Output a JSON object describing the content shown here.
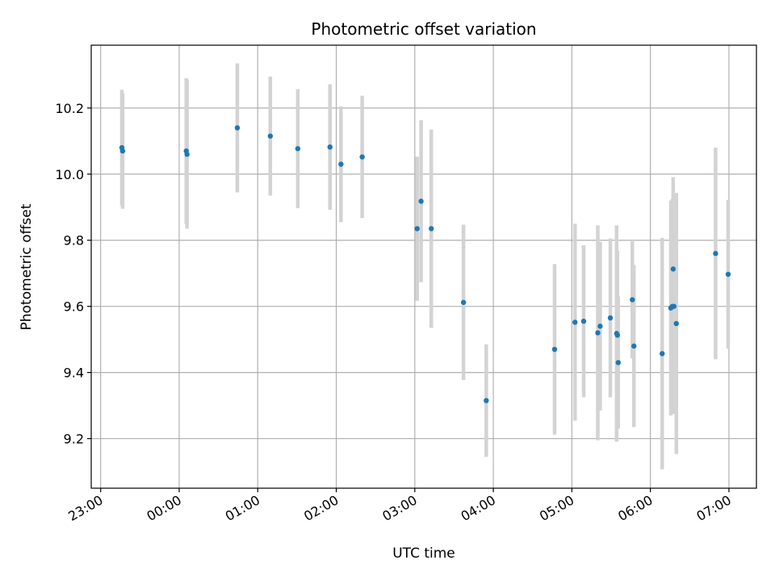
{
  "chart_data": {
    "type": "scatter",
    "title": "Photometric offset variation",
    "xlabel": "UTC time",
    "ylabel": "Photometric offset",
    "x_unit": "hours, UTC",
    "xlim": [
      -1.12,
      7.35
    ],
    "ylim": [
      9.05,
      10.39
    ],
    "x_ticks": [
      {
        "value": -1,
        "label": "23:00"
      },
      {
        "value": 0,
        "label": "00:00"
      },
      {
        "value": 1,
        "label": "01:00"
      },
      {
        "value": 2,
        "label": "02:00"
      },
      {
        "value": 3,
        "label": "03:00"
      },
      {
        "value": 4,
        "label": "04:00"
      },
      {
        "value": 5,
        "label": "05:00"
      },
      {
        "value": 6,
        "label": "06:00"
      },
      {
        "value": 7,
        "label": "07:00"
      }
    ],
    "y_ticks": [
      {
        "value": 9.2,
        "label": "9.2"
      },
      {
        "value": 9.4,
        "label": "9.4"
      },
      {
        "value": 9.6,
        "label": "9.6"
      },
      {
        "value": 9.8,
        "label": "9.8"
      },
      {
        "value": 10.0,
        "label": "10.0"
      },
      {
        "value": 10.2,
        "label": "10.2"
      }
    ],
    "grid": true,
    "marker_color": "#1f77b4",
    "errorbar_color": "#d3d3d3",
    "points": [
      {
        "x": -0.73,
        "y": 10.08,
        "err": 0.175
      },
      {
        "x": -0.72,
        "y": 10.07,
        "err": 0.175
      },
      {
        "x": 0.09,
        "y": 10.07,
        "err": 0.22
      },
      {
        "x": 0.1,
        "y": 10.06,
        "err": 0.225
      },
      {
        "x": 0.74,
        "y": 10.14,
        "err": 0.195
      },
      {
        "x": 1.16,
        "y": 10.115,
        "err": 0.18
      },
      {
        "x": 1.51,
        "y": 10.077,
        "err": 0.18
      },
      {
        "x": 1.92,
        "y": 10.082,
        "err": 0.19
      },
      {
        "x": 2.06,
        "y": 10.03,
        "err": 0.175
      },
      {
        "x": 2.33,
        "y": 10.052,
        "err": 0.185
      },
      {
        "x": 3.03,
        "y": 9.835,
        "err": 0.218
      },
      {
        "x": 3.08,
        "y": 9.918,
        "err": 0.245
      },
      {
        "x": 3.21,
        "y": 9.835,
        "err": 0.3
      },
      {
        "x": 3.62,
        "y": 9.612,
        "err": 0.235
      },
      {
        "x": 3.91,
        "y": 9.315,
        "err": 0.17
      },
      {
        "x": 4.78,
        "y": 9.47,
        "err": 0.258
      },
      {
        "x": 5.04,
        "y": 9.552,
        "err": 0.298
      },
      {
        "x": 5.15,
        "y": 9.555,
        "err": 0.23
      },
      {
        "x": 5.33,
        "y": 9.52,
        "err": 0.325
      },
      {
        "x": 5.36,
        "y": 9.54,
        "err": 0.255
      },
      {
        "x": 5.49,
        "y": 9.565,
        "err": 0.24
      },
      {
        "x": 5.57,
        "y": 9.518,
        "err": 0.327
      },
      {
        "x": 5.58,
        "y": 9.513,
        "err": 0.255
      },
      {
        "x": 5.59,
        "y": 9.43,
        "err": 0.2
      },
      {
        "x": 5.77,
        "y": 9.62,
        "err": 0.177
      },
      {
        "x": 5.79,
        "y": 9.48,
        "err": 0.245
      },
      {
        "x": 6.15,
        "y": 9.457,
        "err": 0.35
      },
      {
        "x": 6.26,
        "y": 9.595,
        "err": 0.325
      },
      {
        "x": 6.28,
        "y": 9.6,
        "err": 0.325
      },
      {
        "x": 6.29,
        "y": 9.713,
        "err": 0.278
      },
      {
        "x": 6.3,
        "y": 9.6,
        "err": 0.325
      },
      {
        "x": 6.33,
        "y": 9.548,
        "err": 0.395
      },
      {
        "x": 6.83,
        "y": 9.76,
        "err": 0.32
      },
      {
        "x": 6.99,
        "y": 9.697,
        "err": 0.225
      }
    ]
  }
}
